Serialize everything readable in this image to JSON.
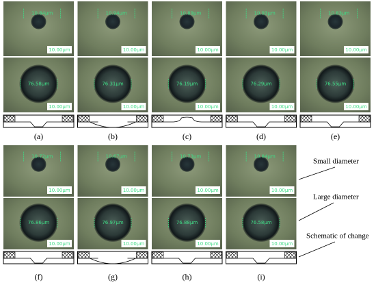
{
  "panels": [
    {
      "label": "(a)",
      "small": {
        "measure": "10.84μm",
        "scale": "10.00μm"
      },
      "large": {
        "measure": "76.58μm",
        "scale": "10.00μm"
      }
    },
    {
      "label": "(b)",
      "small": {
        "measure": "10.94μm",
        "scale": "10.00μm"
      },
      "large": {
        "measure": "76.31μm",
        "scale": "10.00μm"
      }
    },
    {
      "label": "(c)",
      "small": {
        "measure": "10.89μm",
        "scale": "10.00μm"
      },
      "large": {
        "measure": "76.19μm",
        "scale": "10.00μm"
      }
    },
    {
      "label": "(d)",
      "small": {
        "measure": "10.93μm",
        "scale": "10.00μm"
      },
      "large": {
        "measure": "76.29μm",
        "scale": "10.00μm"
      }
    },
    {
      "label": "(e)",
      "small": {
        "measure": "10.83μm",
        "scale": "10.00μm"
      },
      "large": {
        "measure": "76.55μm",
        "scale": "10.00μm"
      }
    },
    {
      "label": "(f)",
      "small": {
        "measure": "10.72μm",
        "scale": "10.00μm"
      },
      "large": {
        "measure": "76.86μm",
        "scale": "10.00μm"
      }
    },
    {
      "label": "(g)",
      "small": {
        "measure": "10.67μm",
        "scale": "10.00μm"
      },
      "large": {
        "measure": "76.97μm",
        "scale": "10.00μm"
      }
    },
    {
      "label": "(h)",
      "small": {
        "measure": "10.73μm",
        "scale": "10.00μm"
      },
      "large": {
        "measure": "76.88μm",
        "scale": "10.00μm"
      }
    },
    {
      "label": "(i)",
      "small": {
        "measure": "10.84μm",
        "scale": "10.00μm"
      },
      "large": {
        "measure": "76.58μm",
        "scale": "10.00μm"
      }
    }
  ],
  "annotations": {
    "small": "Small diameter",
    "large": "Large diameter",
    "schematic": "Schematic of change"
  }
}
